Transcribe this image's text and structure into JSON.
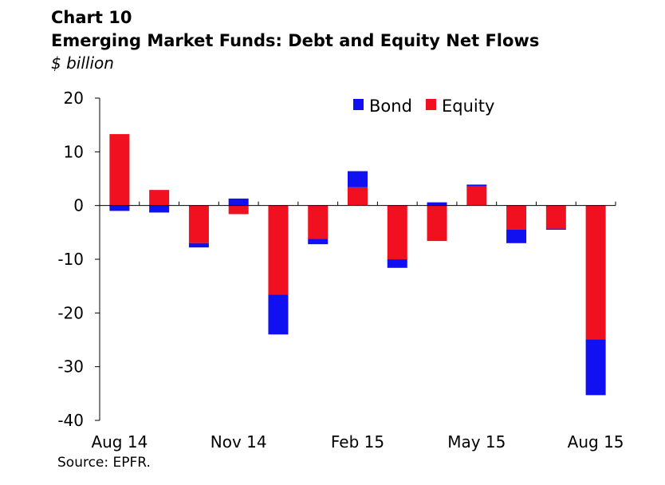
{
  "header": {
    "chart_number": "Chart 10",
    "title": "Emerging Market Funds: Debt and Equity Net Flows",
    "unit": "$ billion"
  },
  "footer": {
    "source": "Source: EPFR."
  },
  "colors": {
    "bond": "#1010f0",
    "equity": "#f01020",
    "axis": "#000000"
  },
  "chart_data": {
    "type": "bar",
    "stacked": true,
    "title": "Emerging Market Funds: Debt and Equity Net Flows",
    "ylabel": "$ billion",
    "xlabel": "",
    "ylim": [
      -40,
      20
    ],
    "yticks": [
      20,
      10,
      0,
      -10,
      -20,
      -30,
      -40
    ],
    "xtick_labels": [
      {
        "label": "Aug 14",
        "index": 0
      },
      {
        "label": "Nov 14",
        "index": 3
      },
      {
        "label": "Feb 15",
        "index": 6
      },
      {
        "label": "May 15",
        "index": 9
      },
      {
        "label": "Aug 15",
        "index": 12
      }
    ],
    "legend": {
      "position": "top-right",
      "entries": [
        "Bond",
        "Equity"
      ]
    },
    "grid": false,
    "categories": [
      "Aug 14",
      "Sep 14",
      "Oct 14",
      "Nov 14",
      "Dec 14",
      "Jan 15",
      "Feb 15",
      "Mar 15",
      "Apr 15",
      "May 15",
      "Jun 15",
      "Jul 15",
      "Aug 15"
    ],
    "series": [
      {
        "name": "Equity",
        "values": [
          13.3,
          2.9,
          -7.0,
          -1.6,
          -16.6,
          -6.2,
          3.4,
          -10.0,
          -6.6,
          3.6,
          -4.5,
          -4.3,
          -24.9
        ]
      },
      {
        "name": "Bond",
        "values": [
          -1.0,
          -1.3,
          -0.8,
          1.3,
          -7.4,
          -1.0,
          3.0,
          -1.6,
          0.6,
          0.3,
          -2.5,
          -0.2,
          -10.4
        ]
      }
    ]
  }
}
